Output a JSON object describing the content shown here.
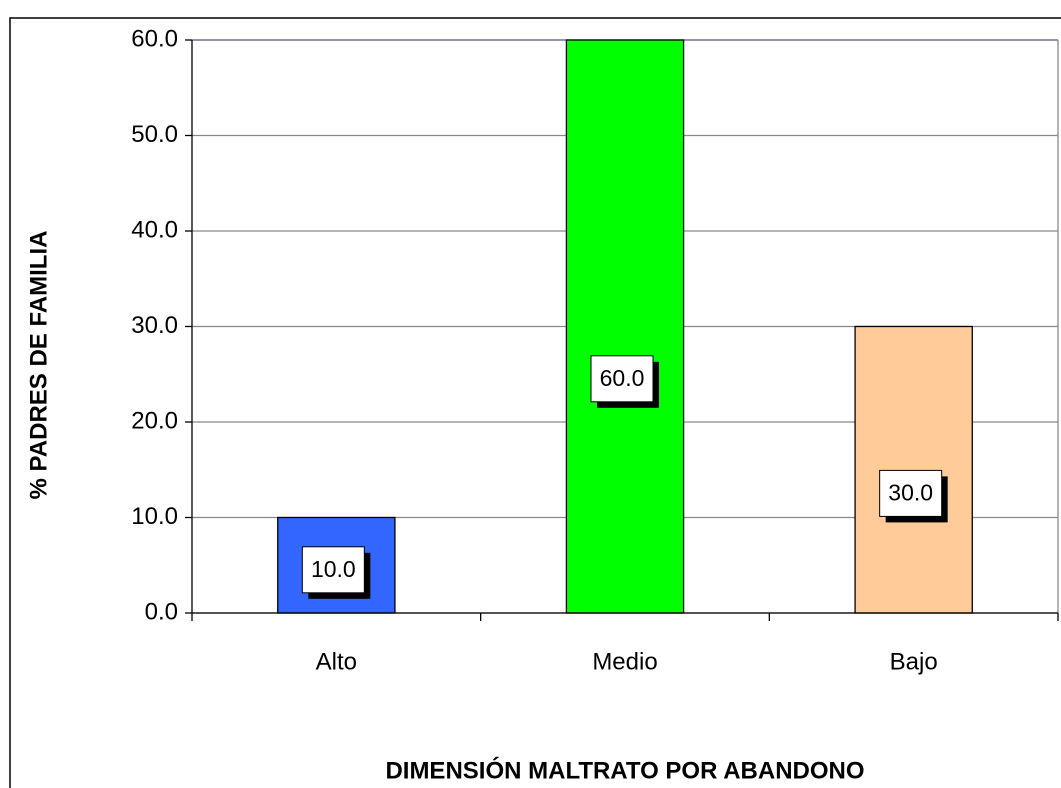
{
  "chart_data": {
    "type": "bar",
    "categories": [
      "Alto",
      "Medio",
      "Bajo"
    ],
    "values": [
      10,
      60,
      30
    ],
    "value_labels": [
      "10.0",
      "60.0",
      "30.0"
    ],
    "colors": [
      "#3366ff",
      "#00ff00",
      "#ffcc99"
    ],
    "x_label": "DIMENSIÓN MALTRATO POR ABANDONO",
    "y_label": "% PADRES DE FAMILIA",
    "ylim": [
      0,
      60
    ],
    "yticks": [
      {
        "value": 0,
        "label": "0.0"
      },
      {
        "value": 10,
        "label": "10.0"
      },
      {
        "value": 20,
        "label": "20.0"
      },
      {
        "value": 30,
        "label": "30.0"
      },
      {
        "value": 40,
        "label": "40.0"
      },
      {
        "value": 50,
        "label": "50.0"
      },
      {
        "value": 60,
        "label": "60.0"
      }
    ],
    "grid": true
  }
}
